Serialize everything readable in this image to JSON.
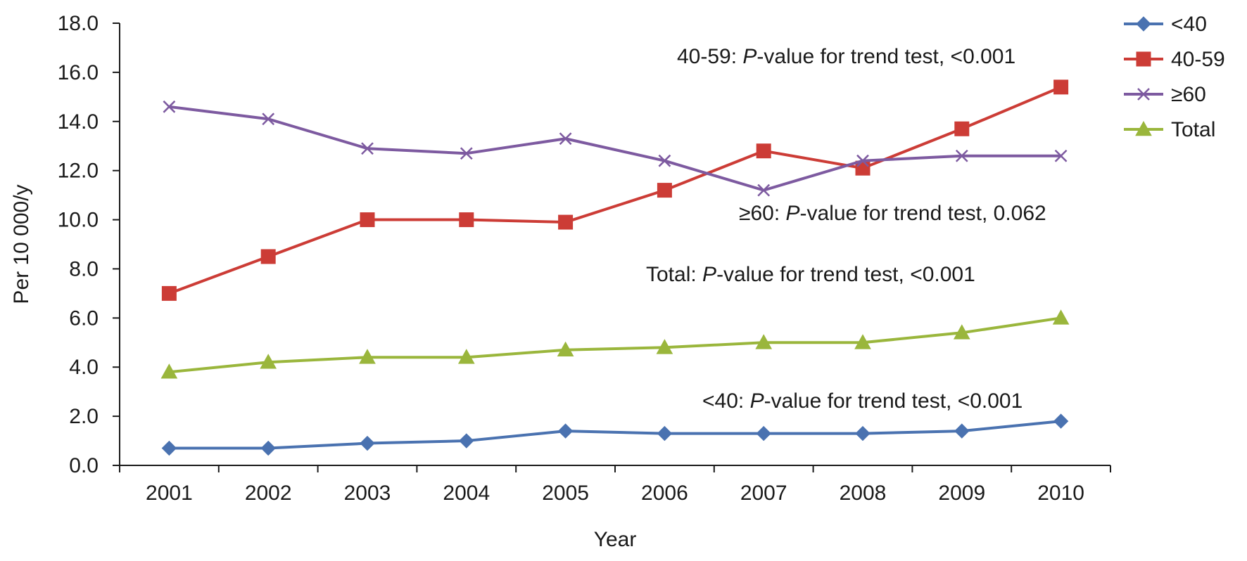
{
  "chart_data": {
    "type": "line",
    "xlabel": "Year",
    "ylabel": "Per 10 000/y",
    "ylim": [
      0,
      18
    ],
    "y_ticks": [
      "0.0",
      "2.0",
      "4.0",
      "6.0",
      "8.0",
      "10.0",
      "12.0",
      "14.0",
      "16.0",
      "18.0"
    ],
    "categories": [
      "2001",
      "2002",
      "2003",
      "2004",
      "2005",
      "2006",
      "2007",
      "2008",
      "2009",
      "2010"
    ],
    "grid": false,
    "legend_position": "top-right",
    "series": [
      {
        "name": "<40",
        "marker": "diamond",
        "color": "#4a72b0",
        "values": [
          0.7,
          0.7,
          0.9,
          1.0,
          1.4,
          1.3,
          1.3,
          1.3,
          1.4,
          1.8
        ]
      },
      {
        "name": "40-59",
        "marker": "square",
        "color": "#cc3c36",
        "values": [
          7.0,
          8.5,
          10.0,
          10.0,
          9.9,
          11.2,
          12.8,
          12.1,
          13.7,
          15.4
        ]
      },
      {
        "name": "≥60",
        "marker": "x",
        "color": "#7d5aa0",
        "values": [
          14.6,
          14.1,
          12.9,
          12.7,
          13.3,
          12.4,
          11.2,
          12.4,
          12.6,
          12.6
        ]
      },
      {
        "name": "Total",
        "marker": "triangle",
        "color": "#9ab63c",
        "values": [
          3.8,
          4.2,
          4.4,
          4.4,
          4.7,
          4.8,
          5.0,
          5.0,
          5.4,
          6.0
        ]
      }
    ],
    "annotations": [
      {
        "id": "a4059",
        "prefix": "40-59: ",
        "italic": "P",
        "suffix": "-value for trend test, <0.001"
      },
      {
        "id": "a60",
        "prefix": "≥60: ",
        "italic": "P",
        "suffix": "-value for trend test, 0.062"
      },
      {
        "id": "atotal",
        "prefix": "Total: ",
        "italic": "P",
        "suffix": "-value for trend test, <0.001"
      },
      {
        "id": "a40",
        "prefix": "<40: ",
        "italic": "P",
        "suffix": "-value for trend test, <0.001"
      }
    ]
  }
}
